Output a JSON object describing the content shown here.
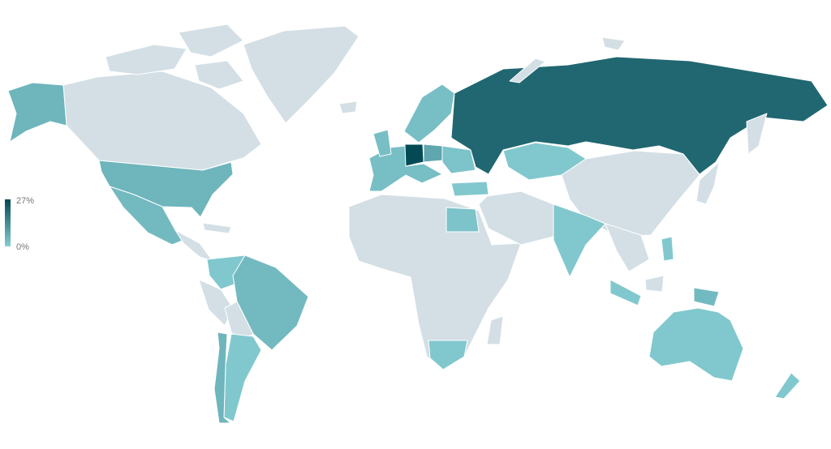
{
  "legend": {
    "max_label": "27%",
    "min_label": "0%",
    "max_color": "#034a55",
    "min_color": "#86cdd3"
  },
  "colors": {
    "no_data": "#d3dfe5",
    "background": "#ffffff",
    "border": "#ffffff"
  },
  "chart_data": {
    "type": "choropleth",
    "scale": {
      "min": 0,
      "max": 27,
      "unit": "%"
    },
    "regions": [
      {
        "id": "germany",
        "value": 27
      },
      {
        "id": "russia",
        "value": 21
      },
      {
        "id": "poland",
        "value": 8
      },
      {
        "id": "usa",
        "value": 5
      },
      {
        "id": "alaska",
        "value": 5
      },
      {
        "id": "brazil",
        "value": 4
      },
      {
        "id": "chile",
        "value": 5
      },
      {
        "id": "papua",
        "value": 4
      },
      {
        "id": "mexico",
        "value": 4
      },
      {
        "id": "western-europe",
        "value": 3
      },
      {
        "id": "uk",
        "value": 3
      },
      {
        "id": "scandinavia",
        "value": 3
      },
      {
        "id": "eastern-europe",
        "value": 2
      },
      {
        "id": "kazakhstan",
        "value": 1
      },
      {
        "id": "turkey",
        "value": 1
      },
      {
        "id": "india",
        "value": 1
      },
      {
        "id": "egypt",
        "value": 2
      },
      {
        "id": "south-africa",
        "value": 1
      },
      {
        "id": "argentina",
        "value": 1
      },
      {
        "id": "colombia-venezuela",
        "value": 1
      },
      {
        "id": "australia",
        "value": 1
      },
      {
        "id": "new-zealand",
        "value": 1
      },
      {
        "id": "indonesia",
        "value": 1
      },
      {
        "id": "philippines",
        "value": 1
      }
    ]
  }
}
